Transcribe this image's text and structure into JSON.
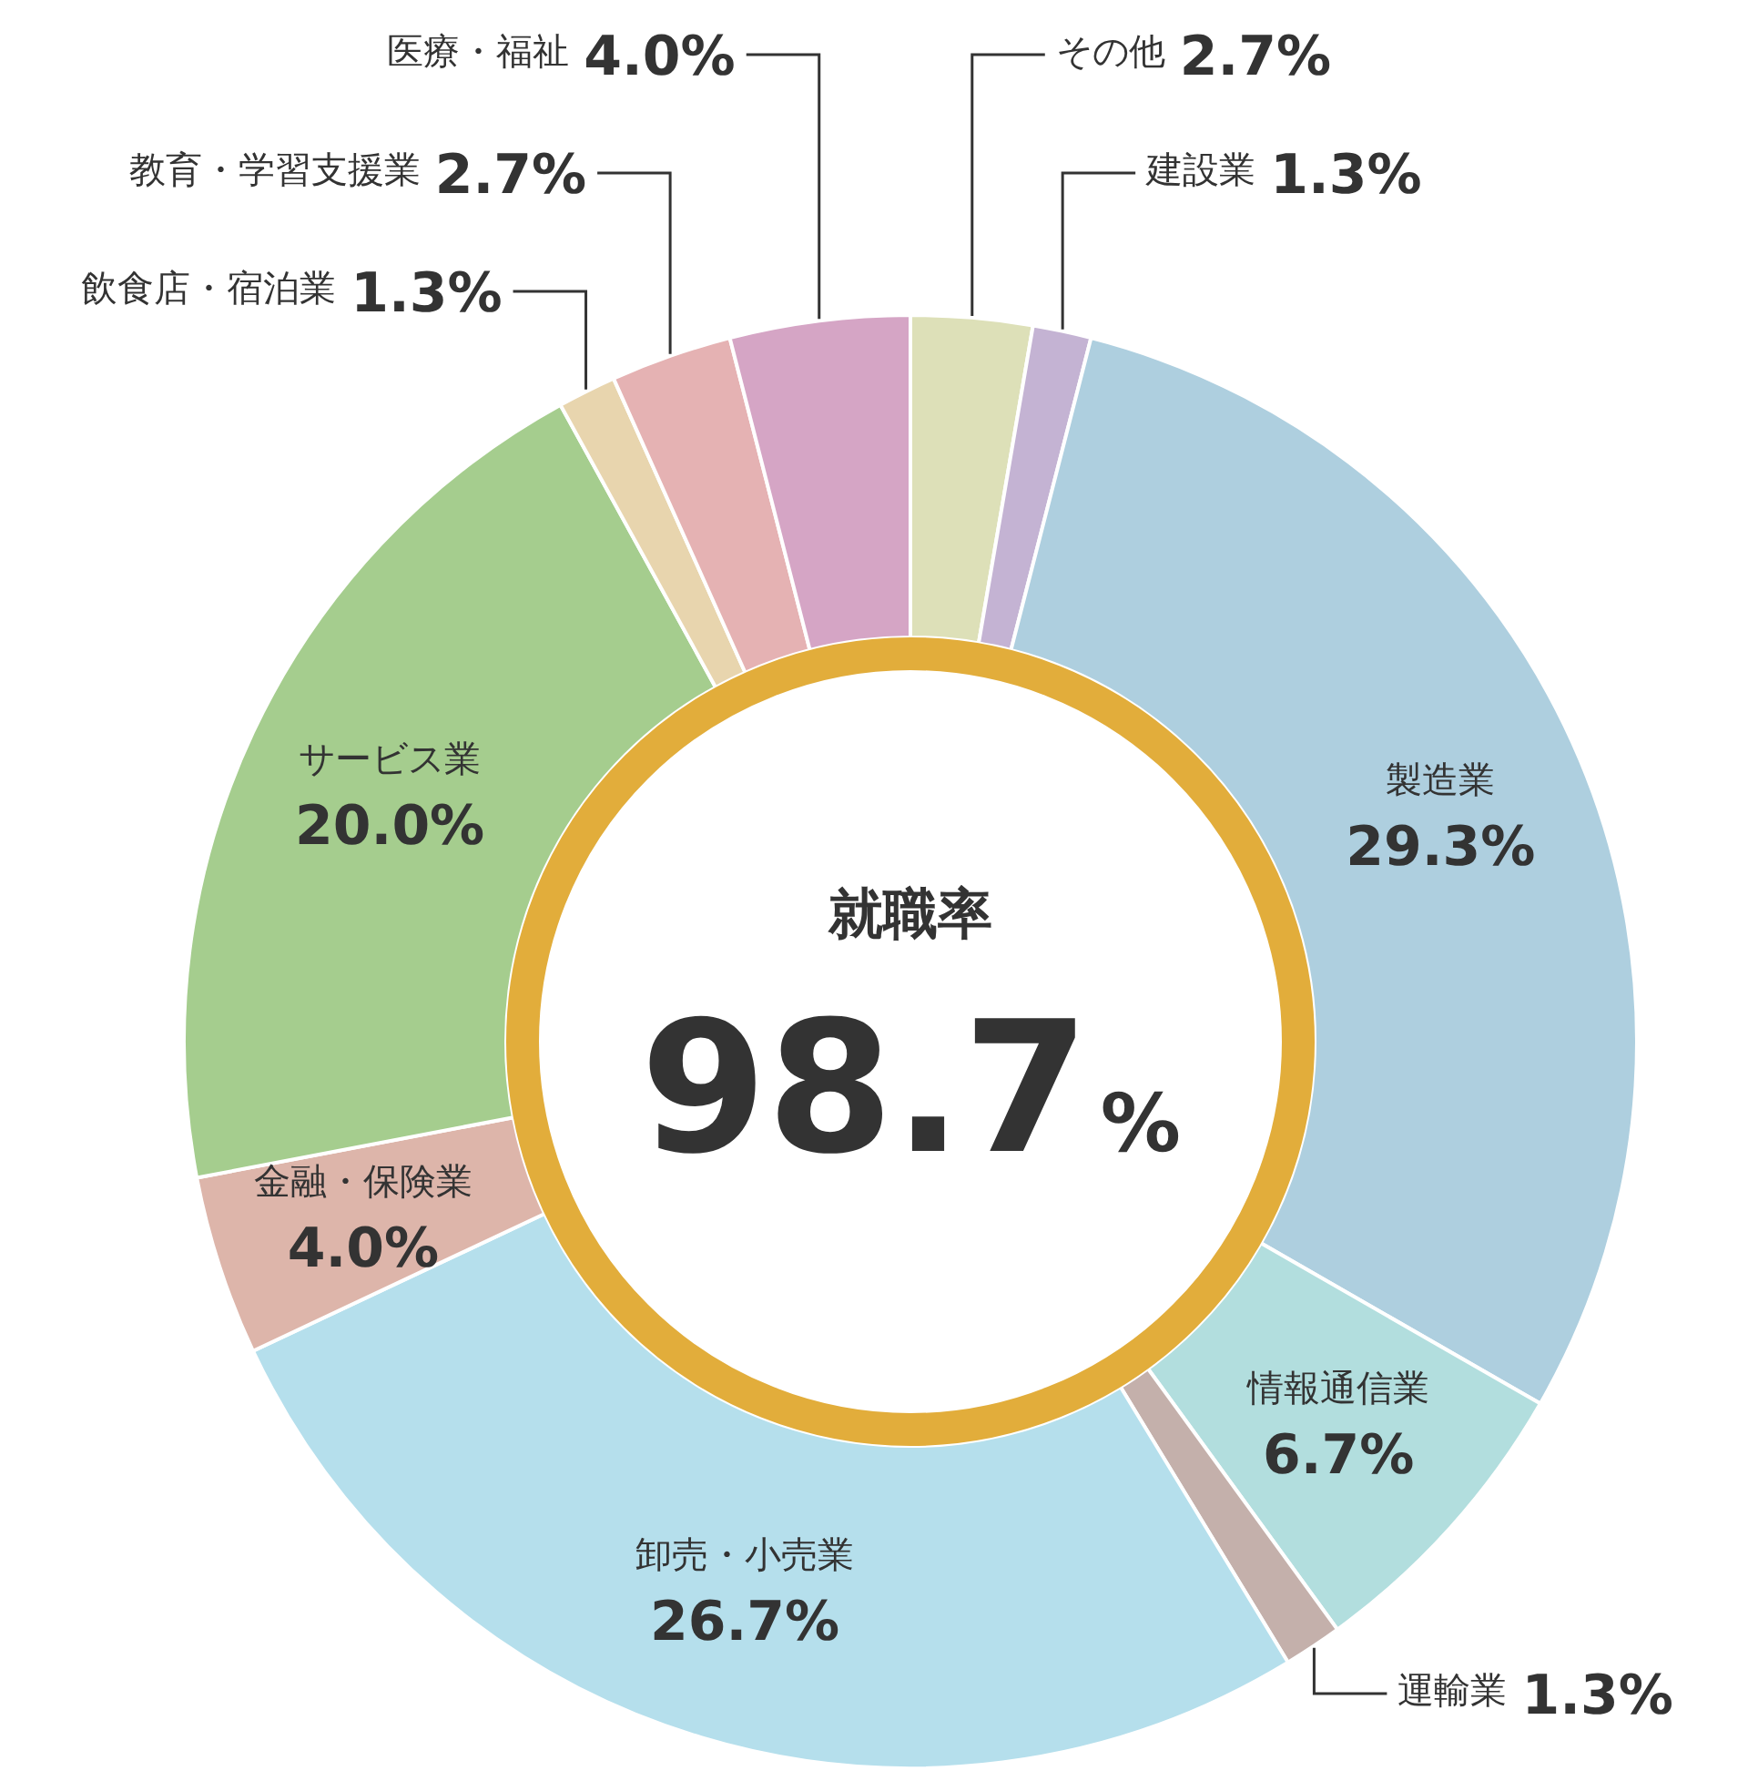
{
  "chart_data": {
    "type": "donut",
    "title": "就職率",
    "annotations": [
      "98.7%"
    ],
    "categories": [
      "その他",
      "建設業",
      "製造業",
      "情報通信業",
      "運輸業",
      "卸売・小売業",
      "金融・保険業",
      "サービス業",
      "飲食店・宿泊業",
      "教育・学習支援業",
      "医療・福祉"
    ],
    "values": [
      2.7,
      1.3,
      29.3,
      6.7,
      1.3,
      26.7,
      4.0,
      20.0,
      1.3,
      2.7,
      4.0
    ],
    "colors": [
      "#dde0b8",
      "#c4b3d3",
      "#aecfdf",
      "#b2dede",
      "#c4b0ab",
      "#b5dfec",
      "#ddb5aa",
      "#a5cd8e",
      "#e8d5ae",
      "#e5b2b3",
      "#d5a5c5"
    ],
    "value_labels": [
      "2.7%",
      "1.3%",
      "29.3%",
      "6.7%",
      "1.3%",
      "26.7%",
      "4.0%",
      "20.0%",
      "1.3%",
      "2.7%",
      "4.0%"
    ],
    "legend": false
  }
}
